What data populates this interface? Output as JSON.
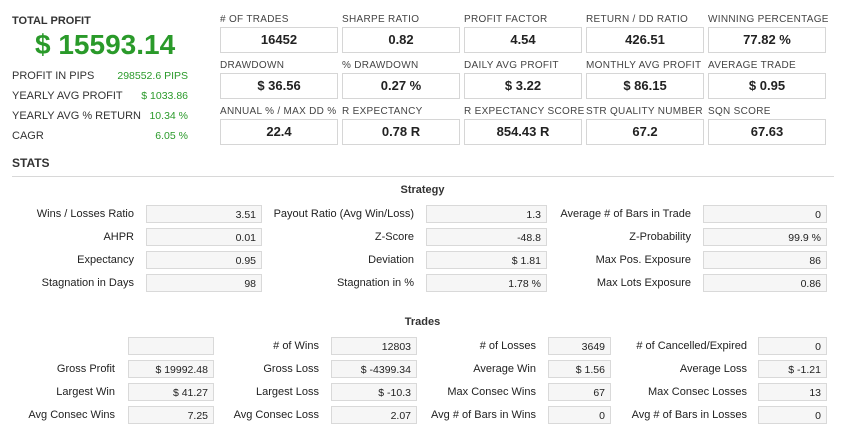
{
  "summary": {
    "total_profit_label": "TOTAL PROFIT",
    "total_profit_value": "$ 15593.14",
    "rows": [
      {
        "label": "PROFIT IN PIPS",
        "value": "298552.6 PIPS"
      },
      {
        "label": "YEARLY AVG PROFIT",
        "value": "$ 1033.86"
      },
      {
        "label": "YEARLY AVG % RETURN",
        "value": "10.34 %"
      },
      {
        "label": "CAGR",
        "value": "6.05 %"
      }
    ]
  },
  "metrics": [
    {
      "label": "# OF TRADES",
      "value": "16452"
    },
    {
      "label": "SHARPE RATIO",
      "value": "0.82"
    },
    {
      "label": "PROFIT FACTOR",
      "value": "4.54"
    },
    {
      "label": "RETURN / DD RATIO",
      "value": "426.51"
    },
    {
      "label": "WINNING PERCENTAGE",
      "value": "77.82 %"
    },
    {
      "label": "DRAWDOWN",
      "value": "$ 36.56"
    },
    {
      "label": "% DRAWDOWN",
      "value": "0.27 %"
    },
    {
      "label": "DAILY AVG PROFIT",
      "value": "$ 3.22"
    },
    {
      "label": "MONTHLY AVG PROFIT",
      "value": "$ 86.15"
    },
    {
      "label": "AVERAGE TRADE",
      "value": "$ 0.95"
    },
    {
      "label": "ANNUAL % / MAX DD %",
      "value": "22.4"
    },
    {
      "label": "R EXPECTANCY",
      "value": "0.78 R"
    },
    {
      "label": "R EXPECTANCY SCORE",
      "value": "854.43 R"
    },
    {
      "label": "STR QUALITY NUMBER",
      "value": "67.2"
    },
    {
      "label": "SQN SCORE",
      "value": "67.63"
    }
  ],
  "stats_title": "STATS",
  "strategy": {
    "title": "Strategy",
    "rows": [
      [
        {
          "label": "Wins / Losses Ratio",
          "value": "3.51"
        },
        {
          "label": "Payout Ratio (Avg Win/Loss)",
          "value": "1.3"
        },
        {
          "label": "Average # of Bars in Trade",
          "value": "0"
        }
      ],
      [
        {
          "label": "AHPR",
          "value": "0.01"
        },
        {
          "label": "Z-Score",
          "value": "-48.8"
        },
        {
          "label": "Z-Probability",
          "value": "99.9 %"
        }
      ],
      [
        {
          "label": "Expectancy",
          "value": "0.95"
        },
        {
          "label": "Deviation",
          "value": "$ 1.81"
        },
        {
          "label": "Max Pos. Exposure",
          "value": "86"
        }
      ],
      [
        {
          "label": "Stagnation in Days",
          "value": "98"
        },
        {
          "label": "Stagnation in %",
          "value": "1.78 %"
        },
        {
          "label": "Max Lots Exposure",
          "value": "0.86"
        }
      ]
    ]
  },
  "trades": {
    "title": "Trades",
    "rows": [
      [
        {
          "label": "",
          "value": ""
        },
        {
          "label": "# of Wins",
          "value": "12803"
        },
        {
          "label": "# of Losses",
          "value": "3649"
        },
        {
          "label": "# of Cancelled/Expired",
          "value": "0"
        }
      ],
      [
        {
          "label": "Gross Profit",
          "value": "$ 19992.48"
        },
        {
          "label": "Gross Loss",
          "value": "$ -4399.34"
        },
        {
          "label": "Average Win",
          "value": "$ 1.56"
        },
        {
          "label": "Average Loss",
          "value": "$ -1.21"
        }
      ],
      [
        {
          "label": "Largest Win",
          "value": "$ 41.27"
        },
        {
          "label": "Largest Loss",
          "value": "$ -10.3"
        },
        {
          "label": "Max Consec Wins",
          "value": "67"
        },
        {
          "label": "Max Consec Losses",
          "value": "13"
        }
      ],
      [
        {
          "label": "Avg Consec Wins",
          "value": "7.25"
        },
        {
          "label": "Avg Consec Loss",
          "value": "2.07"
        },
        {
          "label": "Avg # of Bars in Wins",
          "value": "0"
        },
        {
          "label": "Avg # of Bars in Losses",
          "value": "0"
        }
      ]
    ]
  }
}
